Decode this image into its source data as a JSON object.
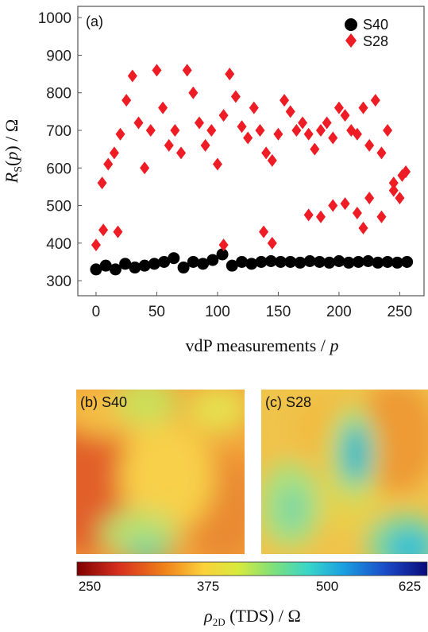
{
  "chart_data": [
    {
      "type": "scatter",
      "panel_label": "(a)",
      "xlabel": "vdP measurements / p",
      "ylabel": "R_S(p) / Ω",
      "xlim": [
        -15,
        270
      ],
      "ylim": [
        260,
        1030
      ],
      "x_ticks": [
        "0",
        "50",
        "100",
        "150",
        "200",
        "250"
      ],
      "y_ticks": [
        "300",
        "400",
        "500",
        "600",
        "700",
        "800",
        "900",
        "1000"
      ],
      "legend_position": "top-right",
      "series": [
        {
          "name": "S40",
          "color": "#000000",
          "marker": "circle",
          "x": [
            0,
            8,
            16,
            24,
            32,
            40,
            48,
            56,
            64,
            72,
            80,
            88,
            96,
            104,
            112,
            120,
            128,
            136,
            144,
            152,
            160,
            168,
            176,
            184,
            192,
            200,
            208,
            216,
            224,
            232,
            240,
            248,
            256
          ],
          "y": [
            330,
            340,
            330,
            345,
            335,
            340,
            345,
            350,
            360,
            335,
            350,
            345,
            355,
            370,
            340,
            350,
            345,
            350,
            352,
            350,
            350,
            348,
            352,
            350,
            348,
            352,
            348,
            350,
            352,
            348,
            350,
            348,
            350
          ]
        },
        {
          "name": "S28",
          "color": "#ee1c25",
          "marker": "diamond",
          "x": [
            0,
            5,
            10,
            15,
            20,
            25,
            30,
            35,
            40,
            45,
            50,
            55,
            60,
            65,
            70,
            75,
            80,
            85,
            90,
            95,
            100,
            105,
            110,
            115,
            120,
            125,
            130,
            135,
            140,
            145,
            150,
            155,
            160,
            165,
            170,
            175,
            180,
            185,
            190,
            195,
            200,
            205,
            210,
            215,
            220,
            225,
            230,
            235,
            240,
            245,
            250,
            255
          ],
          "y": [
            395,
            560,
            610,
            640,
            690,
            780,
            845,
            720,
            600,
            700,
            860,
            760,
            660,
            700,
            640,
            860,
            800,
            720,
            660,
            700,
            610,
            740,
            850,
            790,
            710,
            680,
            760,
            700,
            640,
            620,
            690,
            780,
            750,
            700,
            720,
            690,
            650,
            700,
            720,
            680,
            760,
            740,
            700,
            690,
            760,
            660,
            780,
            640,
            700,
            560,
            520,
            590
          ]
        },
        {
          "name": "S28",
          "color": "#ee1c25",
          "marker": "diamond",
          "x": [
            6,
            18,
            105,
            138,
            145,
            175,
            185,
            195,
            205,
            215,
            220,
            225,
            235,
            245,
            252
          ],
          "y": [
            435,
            430,
            395,
            430,
            400,
            475,
            470,
            500,
            505,
            480,
            440,
            520,
            470,
            540,
            580
          ]
        }
      ]
    },
    {
      "type": "heatmap",
      "panel_label": "(b) S40",
      "colorbar_ticks": [
        "250",
        "375",
        "500",
        "625"
      ],
      "colorbar_range": [
        250,
        625
      ],
      "colorbar_label": "ρ2D (TDS) / Ω"
    },
    {
      "type": "heatmap",
      "panel_label": "(c) S28",
      "colorbar_ticks": [
        "250",
        "375",
        "500",
        "625"
      ],
      "colorbar_range": [
        250,
        625
      ],
      "colorbar_label": "ρ2D (TDS) / Ω"
    }
  ]
}
